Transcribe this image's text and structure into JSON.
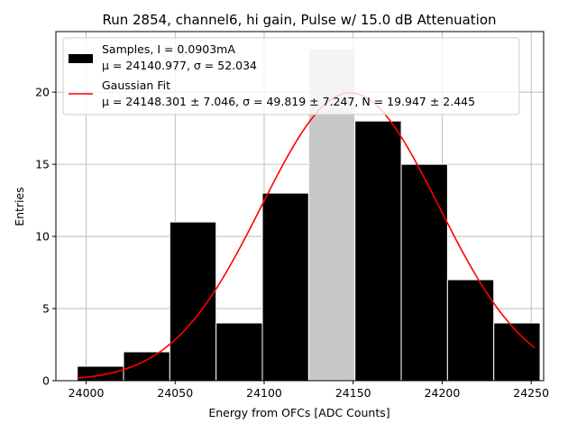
{
  "chart_data": {
    "type": "bar",
    "title": "Run 2854, channel6, hi gain, Pulse w/ 15.0 dB Attenuation",
    "xlabel": "Energy from OFCs [ADC Counts]",
    "ylabel": "Entries",
    "xlim": [
      23983,
      24257
    ],
    "ylim": [
      0,
      24.2
    ],
    "x_ticks": [
      24000,
      24050,
      24100,
      24150,
      24200,
      24250
    ],
    "x_tick_labels": [
      "24000",
      "24050",
      "24100",
      "24150",
      "24200",
      "24250"
    ],
    "y_ticks": [
      0,
      5,
      10,
      15,
      20
    ],
    "y_tick_labels": [
      "0",
      "5",
      "10",
      "15",
      "20"
    ],
    "grid": true,
    "legend_position": "top-left",
    "bin_edges": [
      23995,
      24021,
      24047,
      24073,
      24099,
      24125,
      24151,
      24177,
      24203,
      24229,
      24255
    ],
    "series": [
      {
        "name": "Samples, I = 0.0903mA",
        "subtitle": "μ = 24140.977, σ = 52.034",
        "type": "histogram",
        "color": "#000000",
        "values": [
          1,
          2,
          11,
          4,
          13,
          23,
          18,
          15,
          7,
          4
        ],
        "highlight_bin": 5,
        "highlight_color": "#c8c8c8"
      },
      {
        "name": "Gaussian Fit",
        "subtitle": "μ = 24148.301 ± 7.046, σ = 49.819 ± 7.247, N = 19.947 ± 2.445",
        "type": "line",
        "color": "#ff0000",
        "mu": 24148.301,
        "sigma": 49.819,
        "N": 19.947,
        "x_range": [
          23995,
          24252
        ]
      }
    ]
  }
}
